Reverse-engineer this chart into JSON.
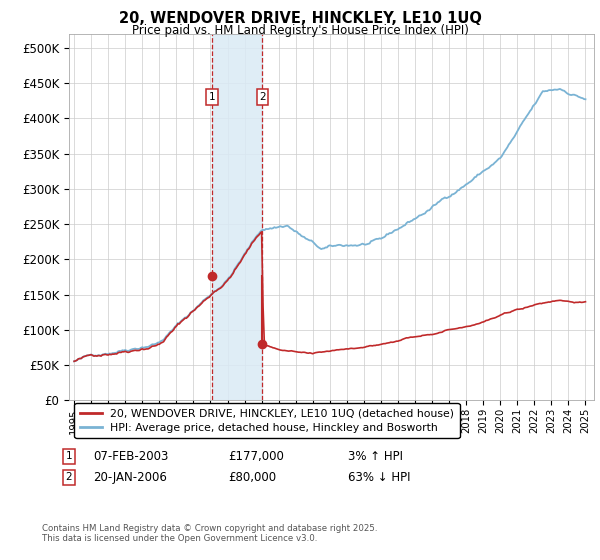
{
  "title": "20, WENDOVER DRIVE, HINCKLEY, LE10 1UQ",
  "subtitle": "Price paid vs. HM Land Registry's House Price Index (HPI)",
  "ylabel_ticks": [
    "£0",
    "£50K",
    "£100K",
    "£150K",
    "£200K",
    "£250K",
    "£300K",
    "£350K",
    "£400K",
    "£450K",
    "£500K"
  ],
  "ytick_vals": [
    0,
    50000,
    100000,
    150000,
    200000,
    250000,
    300000,
    350000,
    400000,
    450000,
    500000
  ],
  "xlim_start": 1994.7,
  "xlim_end": 2025.5,
  "ylim_min": 0,
  "ylim_max": 520000,
  "transaction1": {
    "date": 2003.1,
    "price": 177000,
    "label": "1",
    "date_str": "07-FEB-2003",
    "price_str": "£177,000",
    "pct": "3% ↑ HPI"
  },
  "transaction2": {
    "date": 2006.05,
    "price": 80000,
    "label": "2",
    "date_str": "20-JAN-2006",
    "price_str": "£80,000",
    "pct": "63% ↓ HPI"
  },
  "legend_line1": "20, WENDOVER DRIVE, HINCKLEY, LE10 1UQ (detached house)",
  "legend_line2": "HPI: Average price, detached house, Hinckley and Bosworth",
  "footer": "Contains HM Land Registry data © Crown copyright and database right 2025.\nThis data is licensed under the Open Government Licence v3.0.",
  "hpi_color": "#7ab3d4",
  "price_color": "#c0292a",
  "shade_color": "#daeaf5",
  "background_color": "#ffffff",
  "grid_color": "#cccccc"
}
